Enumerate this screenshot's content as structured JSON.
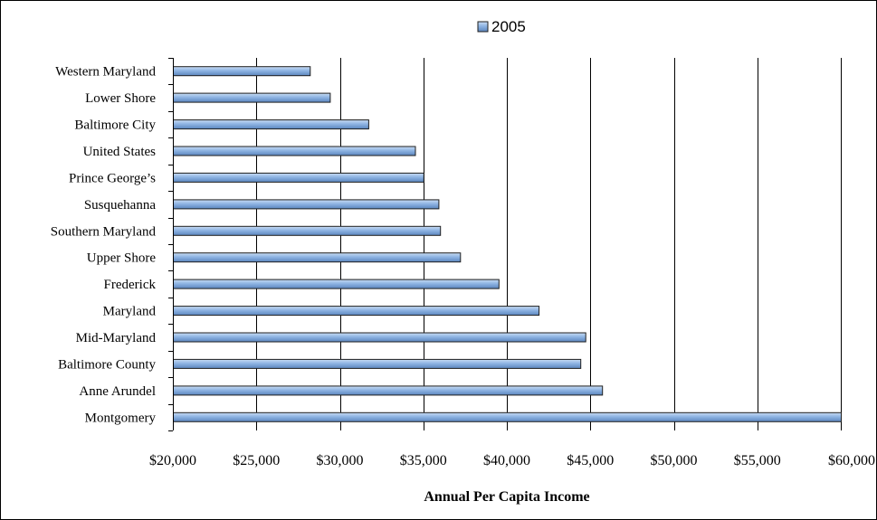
{
  "chart_data": {
    "type": "bar",
    "orientation": "horizontal",
    "categories": [
      "Western Maryland",
      "Lower Shore",
      "Baltimore City",
      "United States",
      "Prince George’s",
      "Susquehanna",
      "Southern Maryland",
      "Upper Shore",
      "Frederick",
      "Maryland",
      "Mid-Maryland",
      "Baltimore County",
      "Anne Arundel",
      "Montgomery"
    ],
    "series": [
      {
        "name": "2005",
        "values": [
          28200,
          29400,
          31700,
          34500,
          35000,
          35900,
          36000,
          37200,
          39500,
          41900,
          44700,
          44400,
          45700,
          60000
        ],
        "color": "#8EB4E3"
      }
    ],
    "title": "",
    "xlabel": "Annual Per Capita Income",
    "ylabel": "",
    "xlim": [
      20000,
      60000
    ],
    "x_ticks": [
      20000,
      25000,
      30000,
      35000,
      40000,
      45000,
      50000,
      55000,
      60000
    ],
    "x_tick_labels": [
      "$20,000",
      "$25,000",
      "$30,000",
      "$35,000",
      "$40,000",
      "$45,000",
      "$50,000",
      "$55,000",
      "$60,000"
    ],
    "grid": "vertical major gridlines",
    "legend": {
      "position": "top",
      "entries": [
        "2005"
      ]
    }
  }
}
